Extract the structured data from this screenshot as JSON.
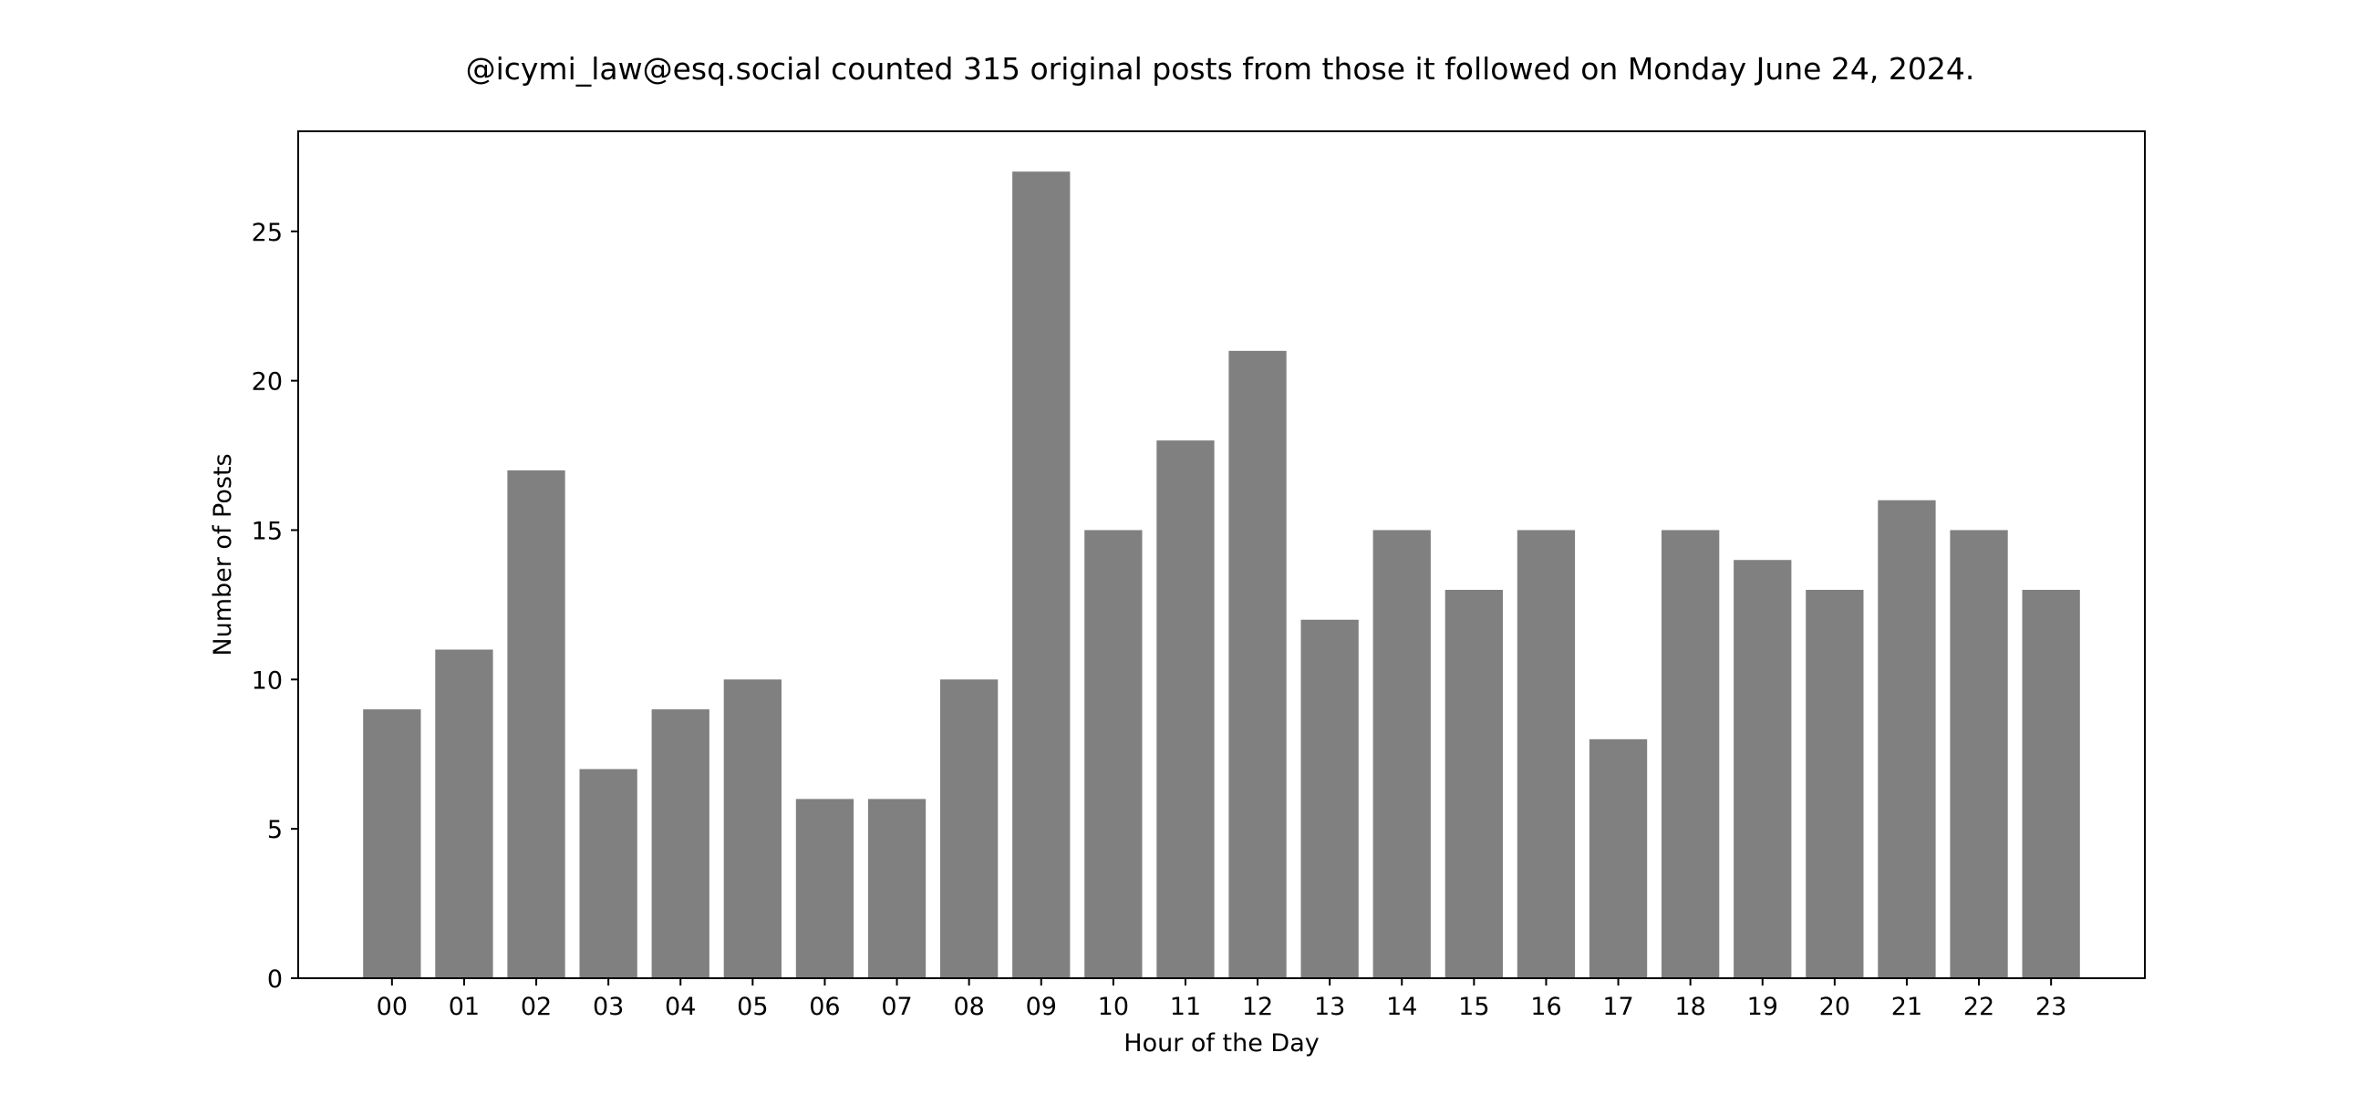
{
  "chart_data": {
    "type": "bar",
    "title": "@icymi_law@esq.social counted 315 original posts from those it followed on Monday June 24, 2024.",
    "xlabel": "Hour of the Day",
    "ylabel": "Number of Posts",
    "categories": [
      "00",
      "01",
      "02",
      "03",
      "04",
      "05",
      "06",
      "07",
      "08",
      "09",
      "10",
      "11",
      "12",
      "13",
      "14",
      "15",
      "16",
      "17",
      "18",
      "19",
      "20",
      "21",
      "22",
      "23"
    ],
    "values": [
      9,
      11,
      17,
      7,
      9,
      10,
      6,
      6,
      10,
      27,
      15,
      18,
      21,
      12,
      15,
      13,
      15,
      8,
      15,
      14,
      13,
      16,
      15,
      13
    ],
    "ylim": [
      0,
      28.35
    ],
    "yticks": [
      0,
      5,
      10,
      15,
      20,
      25
    ],
    "grid": false,
    "legend": "none",
    "bar_color": "#808080",
    "axis_color": "#000000",
    "background": "#ffffff"
  }
}
